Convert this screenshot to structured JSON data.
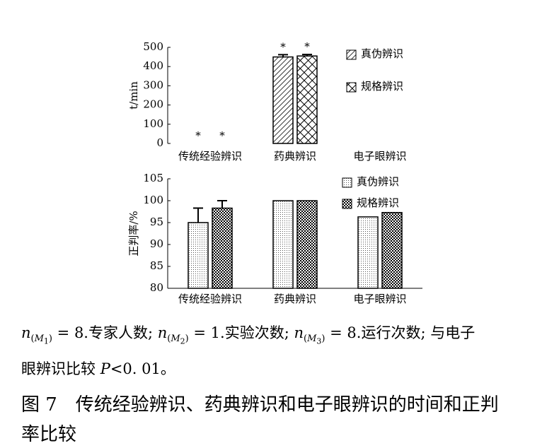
{
  "chart_data": [
    {
      "type": "bar",
      "ylabel": "t/min",
      "categories": [
        "传统经验辨识",
        "药典辨识",
        "电子眼辨识"
      ],
      "series": [
        {
          "name": "真伪辨识",
          "color": "#000000",
          "pattern": "hatch",
          "values": [
            null,
            450,
            null
          ],
          "errors": [
            null,
            12,
            null
          ],
          "markers": [
            "*",
            "*",
            null
          ]
        },
        {
          "name": "规格辨识",
          "color": "#000000",
          "pattern": "cross",
          "values": [
            null,
            455,
            null
          ],
          "errors": [
            null,
            8,
            null
          ],
          "markers": [
            "*",
            "*",
            null
          ]
        }
      ],
      "ylim": [
        0,
        500
      ],
      "yticks": [
        0,
        100,
        200,
        300,
        400,
        500
      ],
      "x_axis_line": false
    },
    {
      "type": "bar",
      "ylabel": "正判率/%",
      "categories": [
        "传统经验辨识",
        "药典辨识",
        "电子眼辨识"
      ],
      "series": [
        {
          "name": "真伪辨识",
          "color": "#000000",
          "pattern": "dots",
          "values": [
            95,
            100,
            96.3
          ],
          "errors": [
            3.3,
            null,
            null
          ]
        },
        {
          "name": "规格辨识",
          "color": "#000000",
          "pattern": "checker",
          "values": [
            98.3,
            100,
            97.3
          ],
          "errors": [
            1.7,
            null,
            null
          ]
        }
      ],
      "ylim": [
        80,
        105
      ],
      "yticks": [
        80,
        85,
        90,
        95,
        100,
        105
      ],
      "x_axis_line": true
    }
  ],
  "note": [
    "n",
    "(",
    "M",
    "1",
    ")",
    " = 8.专家人数; ",
    "n",
    "(",
    "M",
    "2",
    ")",
    " = 1.实验次数; ",
    "n",
    "(",
    "M",
    "3",
    ")",
    " = 8.运行次数; 与电子",
    "眼辨识比较 ",
    "P",
    "<0. 01。"
  ],
  "caption": [
    "图 7　传统经验辨识、药典辨识和电子眼辨识的时间和正判",
    "率比较"
  ]
}
